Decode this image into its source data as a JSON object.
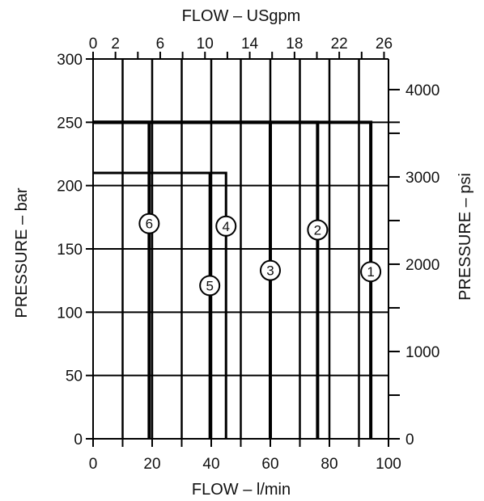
{
  "chart_data": {
    "type": "line",
    "top_axis": {
      "label": "FLOW – USgpm",
      "ticks": [
        "0",
        "2",
        "6",
        "10",
        "14",
        "18",
        "22",
        "26"
      ],
      "tick_values": [
        0,
        2,
        6,
        10,
        14,
        18,
        22,
        26
      ],
      "range": [
        0,
        26.4
      ]
    },
    "bottom_axis": {
      "label": "FLOW – l/min",
      "ticks": [
        "0",
        "20",
        "40",
        "60",
        "80",
        "100"
      ],
      "tick_values": [
        0,
        20,
        40,
        60,
        80,
        100
      ],
      "range": [
        0,
        100
      ]
    },
    "left_axis": {
      "label": "PRESSURE  – bar",
      "ticks": [
        "0",
        "50",
        "100",
        "150",
        "200",
        "250",
        "300"
      ],
      "tick_values": [
        0,
        50,
        100,
        150,
        200,
        250,
        300
      ],
      "range": [
        0,
        300
      ]
    },
    "right_axis": {
      "label": "PRESSURE – psi",
      "ticks": [
        "0",
        "1000",
        "2000",
        "3000",
        "4000"
      ],
      "tick_values": [
        0,
        1000,
        2000,
        3000,
        4000
      ],
      "range": [
        0,
        4351
      ]
    },
    "grid": true,
    "series": [
      {
        "name": "1",
        "flow_lpm": 94,
        "pressure_bar": 250,
        "label_at_bar": 132
      },
      {
        "name": "2",
        "flow_lpm": 76,
        "pressure_bar": 250,
        "label_at_bar": 165
      },
      {
        "name": "3",
        "flow_lpm": 60,
        "pressure_bar": 250,
        "label_at_bar": 133
      },
      {
        "name": "4",
        "flow_lpm": 45,
        "pressure_bar": 210,
        "label_at_bar": 168
      },
      {
        "name": "5",
        "flow_lpm": 39.5,
        "pressure_bar": 210,
        "label_at_bar": 121
      },
      {
        "name": "6",
        "flow_lpm": 19,
        "pressure_bar": 250,
        "label_at_bar": 170
      }
    ]
  }
}
